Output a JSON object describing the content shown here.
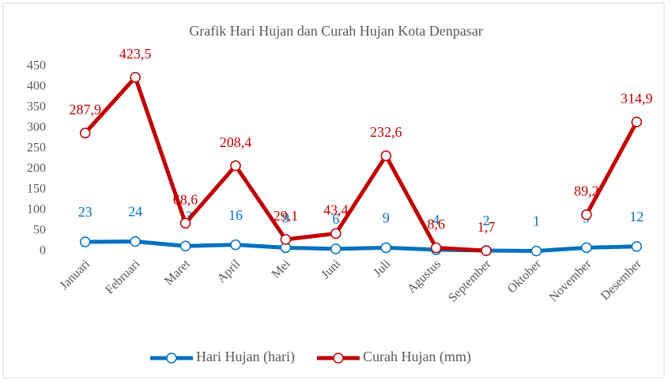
{
  "chart_data": {
    "type": "line",
    "title": "Grafik Hari Hujan dan Curah Hujan Kota Denpasar",
    "categories": [
      "Januari",
      "Februari",
      "Maret",
      "April",
      "Mei",
      "Juni",
      "Juli",
      "Agustus",
      "September",
      "Oktober",
      "November",
      "Desember"
    ],
    "series": [
      {
        "name": "Hari Hujan (hari)",
        "color": "#0070c0",
        "values": [
          23,
          24,
          13,
          16,
          9,
          6,
          9,
          4,
          2,
          1,
          9,
          12
        ]
      },
      {
        "name": "Curah Hujan (mm)",
        "color": "#c00000",
        "values": [
          287.9,
          423.5,
          68.6,
          208.4,
          29.1,
          43.4,
          232.6,
          8.6,
          1.7,
          null,
          89.2,
          314.9
        ],
        "value_labels": [
          "287,9",
          "423,5",
          "68,6",
          "208,4",
          "29,1",
          "43,4",
          "232,6",
          "8,6",
          "1,7",
          null,
          "89,2",
          "314,9"
        ]
      }
    ],
    "ylim": [
      0,
      450
    ],
    "yticks": [
      0,
      50,
      100,
      150,
      200,
      250,
      300,
      350,
      400,
      450
    ],
    "grid": false,
    "legend": "bottom"
  }
}
